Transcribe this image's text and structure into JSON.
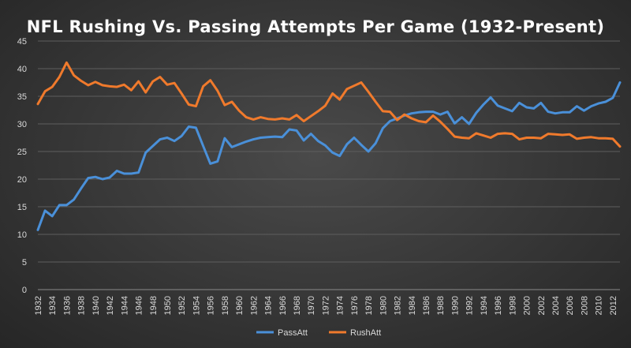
{
  "chart_data": {
    "type": "line",
    "title": "NFL Rushing Vs. Passing Attempts Per Game (1932-Present)",
    "xlabel": "",
    "ylabel": "",
    "ylim": [
      0,
      45
    ],
    "yticks": [
      0,
      5,
      10,
      15,
      20,
      25,
      30,
      35,
      40,
      45
    ],
    "xlim": [
      1932,
      2013
    ],
    "x_tick_labels": [
      "1932",
      "1934",
      "1936",
      "1938",
      "1940",
      "1942",
      "1944",
      "1946",
      "1948",
      "1950",
      "1952",
      "1954",
      "1956",
      "1958",
      "1960",
      "1962",
      "1964",
      "1966",
      "1968",
      "1970",
      "1972",
      "1974",
      "1976",
      "1978",
      "1980",
      "1982",
      "1984",
      "1986",
      "1988",
      "1990",
      "1992",
      "1994",
      "1996",
      "1998",
      "2000",
      "2002",
      "2004",
      "2006",
      "2008",
      "2010",
      "2012"
    ],
    "grid": "horizontal",
    "legend_position": "bottom",
    "x": [
      1932,
      1933,
      1934,
      1935,
      1936,
      1937,
      1938,
      1939,
      1940,
      1941,
      1942,
      1943,
      1944,
      1945,
      1946,
      1947,
      1948,
      1949,
      1950,
      1951,
      1952,
      1953,
      1954,
      1955,
      1956,
      1957,
      1958,
      1959,
      1960,
      1961,
      1962,
      1963,
      1964,
      1965,
      1966,
      1967,
      1968,
      1969,
      1970,
      1971,
      1972,
      1973,
      1974,
      1975,
      1976,
      1977,
      1978,
      1979,
      1980,
      1981,
      1982,
      1983,
      1984,
      1985,
      1986,
      1987,
      1988,
      1989,
      1990,
      1991,
      1992,
      1993,
      1994,
      1995,
      1996,
      1997,
      1998,
      1999,
      2000,
      2001,
      2002,
      2003,
      2004,
      2005,
      2006,
      2007,
      2008,
      2009,
      2010,
      2011,
      2012,
      2013
    ],
    "series": [
      {
        "name": "PassAtt",
        "color": "#4a90d9",
        "values": [
          10.8,
          14.3,
          13.3,
          15.3,
          15.3,
          16.3,
          18.3,
          20.2,
          20.4,
          20.0,
          20.3,
          21.5,
          21.0,
          21.0,
          21.2,
          24.8,
          26.0,
          27.2,
          27.5,
          26.9,
          27.8,
          29.5,
          29.3,
          26.0,
          22.8,
          23.2,
          27.4,
          25.8,
          26.3,
          26.8,
          27.2,
          27.5,
          27.6,
          27.7,
          27.6,
          29.0,
          28.8,
          27.0,
          28.2,
          26.9,
          26.1,
          24.8,
          24.2,
          26.3,
          27.5,
          26.2,
          25.0,
          26.5,
          29.2,
          30.5,
          31.0,
          31.5,
          31.9,
          32.1,
          32.2,
          32.2,
          31.7,
          32.2,
          30.1,
          31.2,
          30.0,
          32.0,
          33.5,
          34.8,
          33.3,
          32.8,
          32.3,
          33.8,
          33.0,
          32.8,
          33.8,
          32.2,
          31.9,
          32.1,
          32.1,
          33.2,
          32.4,
          33.2,
          33.7,
          34.0,
          34.7,
          37.5
        ]
      },
      {
        "name": "RushAtt",
        "color": "#f07a2c",
        "values": [
          33.6,
          35.9,
          36.7,
          38.5,
          41.1,
          38.8,
          37.8,
          37.0,
          37.6,
          37.0,
          36.8,
          36.7,
          37.1,
          36.1,
          37.7,
          35.7,
          37.7,
          38.5,
          37.1,
          37.4,
          35.5,
          33.5,
          33.2,
          36.8,
          37.9,
          36.0,
          33.4,
          34.0,
          32.4,
          31.2,
          30.8,
          31.2,
          30.9,
          30.8,
          31.0,
          30.8,
          31.6,
          30.5,
          31.4,
          32.3,
          33.3,
          35.5,
          34.4,
          36.3,
          36.9,
          37.5,
          35.8,
          34.0,
          32.3,
          32.2,
          30.7,
          31.7,
          31.0,
          30.5,
          30.3,
          31.5,
          30.4,
          29.1,
          27.7,
          27.5,
          27.4,
          28.3,
          27.9,
          27.5,
          28.2,
          28.3,
          28.2,
          27.2,
          27.5,
          27.5,
          27.4,
          28.2,
          28.1,
          28.0,
          28.1,
          27.3,
          27.5,
          27.6,
          27.4,
          27.4,
          27.3,
          25.9
        ]
      }
    ]
  }
}
